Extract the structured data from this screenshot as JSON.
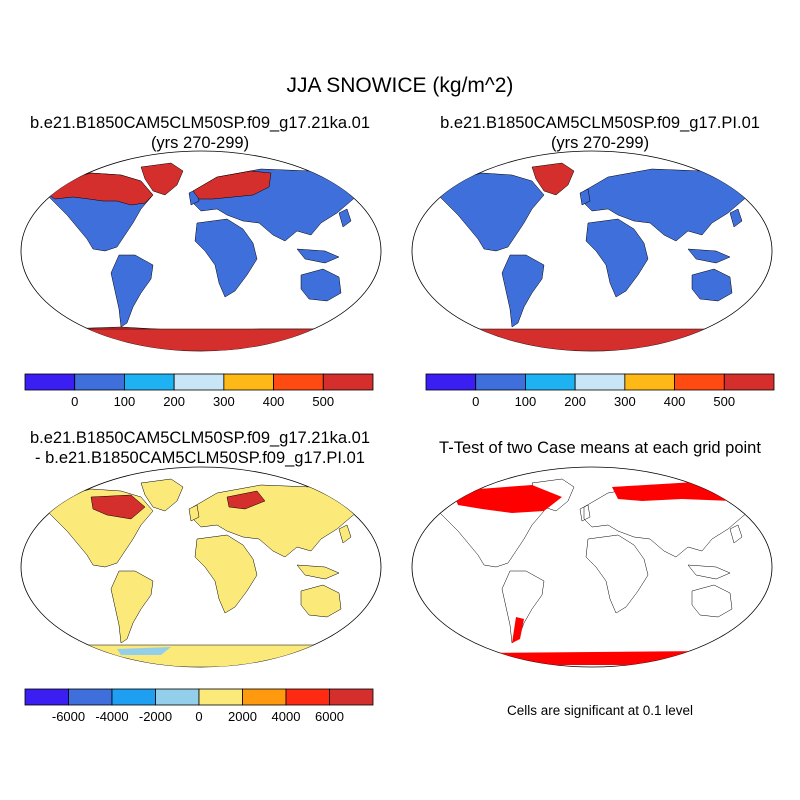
{
  "main_title": "JJA SNOWICE (kg/m^2)",
  "panels": [
    {
      "title_line1": "b.e21.B1850CAM5CLM50SP.f09_g17.21ka.01",
      "title_line2": "(yrs 270-299)",
      "colorbar": {
        "colors": [
          "#3a1ef2",
          "#3e6fdb",
          "#1fb2f2",
          "#c9e6f6",
          "#ffb917",
          "#ff4a12",
          "#d42f2c"
        ],
        "labels": [
          "0",
          "100",
          "200",
          "300",
          "400",
          "500"
        ]
      }
    },
    {
      "title_line1": "b.e21.B1850CAM5CLM50SP.f09_g17.PI.01",
      "title_line2": "(yrs 270-299)",
      "colorbar": {
        "colors": [
          "#3a1ef2",
          "#3e6fdb",
          "#1fb2f2",
          "#c9e6f6",
          "#ffb917",
          "#ff4a12",
          "#d42f2c"
        ],
        "labels": [
          "0",
          "100",
          "200",
          "300",
          "400",
          "500"
        ]
      }
    },
    {
      "title_line1": "b.e21.B1850CAM5CLM50SP.f09_g17.21ka.01",
      "title_line2": "- b.e21.B1850CAM5CLM50SP.f09_g17.PI.01",
      "colorbar": {
        "colors": [
          "#3a1ef2",
          "#3e6fdb",
          "#1e9ff2",
          "#93cfea",
          "#fbe97a",
          "#ff9a0e",
          "#ff2a12",
          "#d42f2c"
        ],
        "labels": [
          "-6000",
          "-4000",
          "-2000",
          "0",
          "2000",
          "4000",
          "6000"
        ]
      }
    },
    {
      "title_line1": "T-Test of two Case means at each grid point",
      "note": "Cells are significant at 0.1 level"
    }
  ],
  "colors": {
    "land_abs": "#3e6fdb",
    "ice_abs": "#d42f2c",
    "land_diff": "#fbe97a",
    "ice_diff": "#d42f2c",
    "significant": "#ff0000",
    "ocean": "#ffffff",
    "coast": "#000000"
  }
}
